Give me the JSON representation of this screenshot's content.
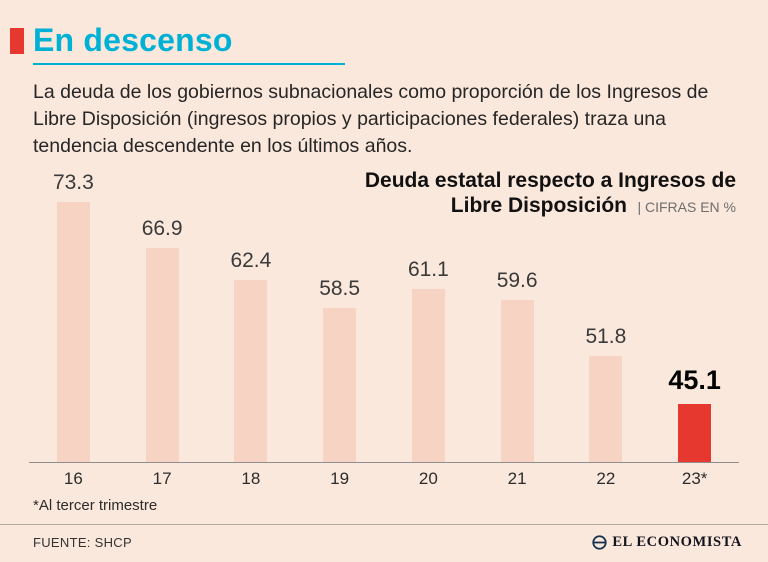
{
  "accent": {
    "red": "#e6382e",
    "cyan": "#00b1d6"
  },
  "header": {
    "title": "En descenso",
    "description": "La deuda de los gobiernos subnacionales como proporción de los Ingresos de Libre Disposición (ingresos propios y participaciones federales) traza una tendencia descendente en los últimos años."
  },
  "chart_data": {
    "type": "bar",
    "title": "Deuda estatal respecto a Ingresos de Libre Disposición",
    "subtitle": "| CIFRAS EN %",
    "categories": [
      "16",
      "17",
      "18",
      "19",
      "20",
      "21",
      "22",
      "23*"
    ],
    "values": [
      73.3,
      66.9,
      62.4,
      58.5,
      61.1,
      59.6,
      51.8,
      45.1
    ],
    "highlight_index": 7,
    "bar_color": "#f7d3c3",
    "highlight_color": "#e6382e",
    "xlabel": "",
    "ylabel": "",
    "ylim": [
      37,
      75
    ],
    "grid": false,
    "legend": "none"
  },
  "footer": {
    "footnote": "*Al tercer trimestre",
    "source": "FUENTE: SHCP",
    "brand": "EL ECONOMISTA"
  }
}
